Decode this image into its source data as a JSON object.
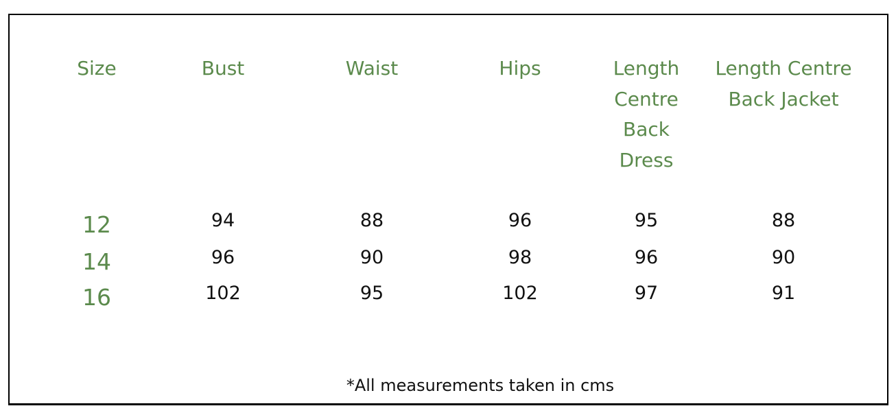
{
  "table": {
    "headers": [
      "Size",
      "Bust",
      "Waist",
      "Hips",
      "Length Centre Back Dress",
      "Length Centre Back Jacket"
    ],
    "rows": [
      [
        "12",
        "94",
        "88",
        "96",
        "95",
        "88"
      ],
      [
        "14",
        "96",
        "90",
        "98",
        "96",
        "90"
      ],
      [
        "16",
        "102",
        "95",
        "102",
        "97",
        "91"
      ]
    ]
  },
  "note": "*All measurements taken in cms",
  "colors": {
    "header_text": "#5b8a4c",
    "body_text": "#111111",
    "border": "#000000"
  }
}
